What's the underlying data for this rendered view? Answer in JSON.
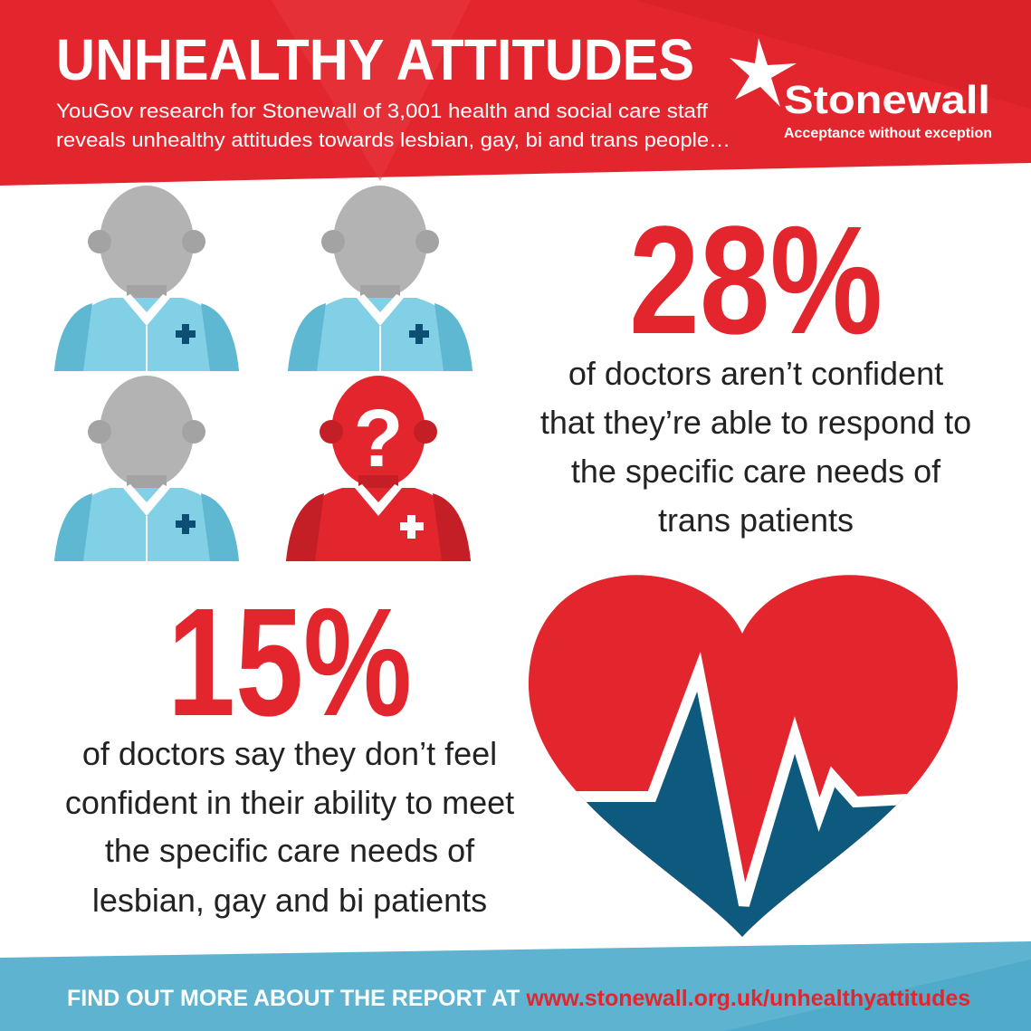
{
  "header": {
    "title": "UNHEALTHY ATTITUDES",
    "subtitle_lines": [
      "YouGov research for Stonewall of 3,001 health and social care staff",
      "reveals unhealthy attitudes towards lesbian, gay, bi and trans people…"
    ]
  },
  "logo": {
    "name": "Stonewall",
    "tagline": "Acceptance without exception"
  },
  "figures": {
    "question_mark": "?"
  },
  "stats": [
    {
      "figure": "28%",
      "lines": [
        "of doctors aren’t confident",
        "that they’re able to respond to",
        "the specific care needs of",
        "trans patients"
      ]
    },
    {
      "figure": "15%",
      "lines": [
        "of doctors say they don’t feel",
        "confident in their ability to meet",
        "the specific care needs of",
        "lesbian, gay and bi patients"
      ]
    }
  ],
  "footer": {
    "prompt": "FIND OUT MORE ABOUT THE REPORT AT",
    "url": "www.stonewall.org.uk/unhealthyattitudes"
  }
}
